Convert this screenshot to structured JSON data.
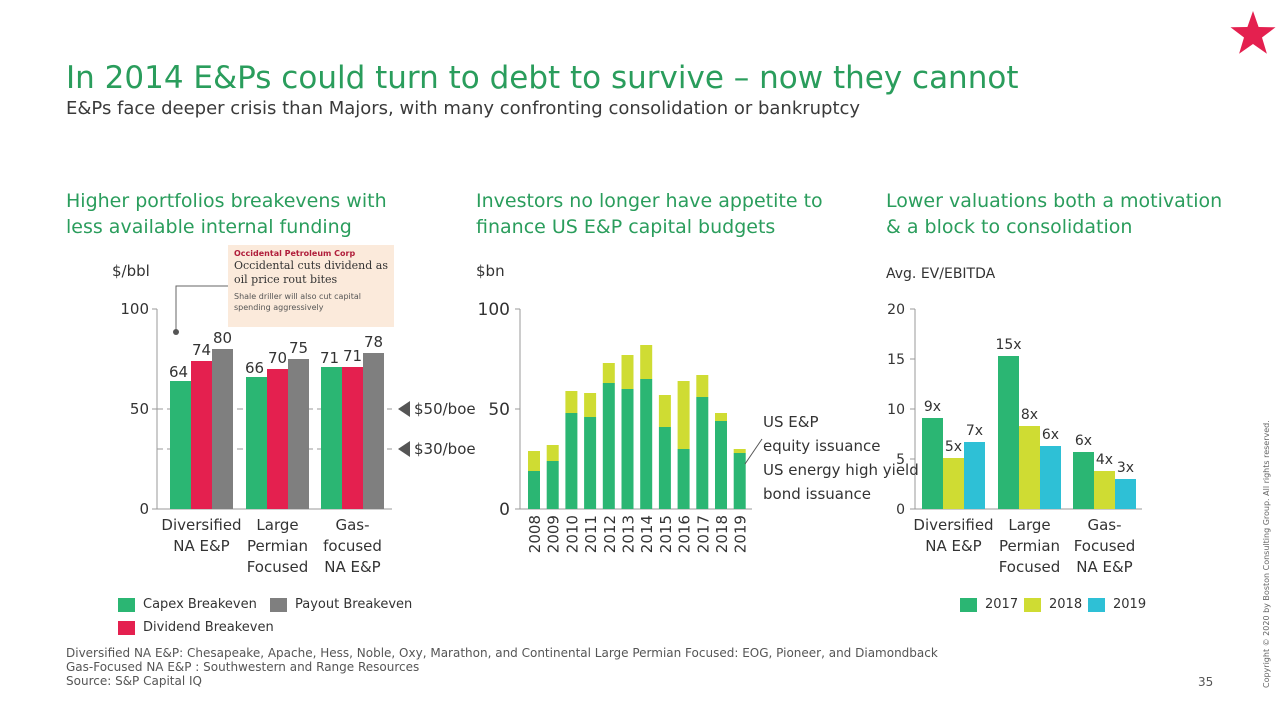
{
  "header": {
    "title": "In 2014 E&Ps could turn to debt to survive – now they cannot",
    "subtitle": "E&Ps face deeper crisis than Majors, with many confronting consolidation or bankruptcy",
    "logo_icon": "star-icon",
    "logo_color": "#e4204f"
  },
  "sections": {
    "left": {
      "title_line1": "Higher portfolios breakevens with",
      "title_line2": "less available internal funding",
      "unit": "$/bbl"
    },
    "middle": {
      "title_line1": "Investors no longer have appetite to",
      "title_line2": "finance US E&P capital budgets",
      "unit": "$bn"
    },
    "right": {
      "title_line1": "Lower valuations both a motivation",
      "title_line2": "& a block to consolidation",
      "unit": "Avg. EV/EBITDA"
    }
  },
  "news_card": {
    "company": "Occidental Petroleum Corp",
    "headline": "Occidental cuts dividend as oil price rout bites",
    "subline": "Shale driller will also cut capital spending aggressively"
  },
  "price_markers": {
    "first": "$50/boe",
    "second": "$30/boe"
  },
  "middle_annotations": {
    "equity_line1": "US E&P",
    "equity_line2": "equity issuance",
    "bond_line1": "US energy high yield",
    "bond_line2": "bond issuance"
  },
  "legends": {
    "left": {
      "capex": "Capex Breakeven",
      "payout": "Payout Breakeven",
      "dividend": "Dividend Breakeven"
    },
    "right": {
      "y2017": "2017",
      "y2018": "2018",
      "y2019": "2019"
    }
  },
  "footnotes": {
    "line1": "Diversified NA E&P: Chesapeake, Apache, Hess, Noble, Oxy, Marathon, and Continental Large Permian Focused: EOG, Pioneer, and Diamondback",
    "line2": "Gas-Focused NA E&P : Southwestern and Range Resources",
    "line3": "Source: S&P Capital IQ"
  },
  "copyright": "Copyright © 2020 by Boston Consulting Group. All rights reserved.",
  "page_number": "35",
  "colors": {
    "green": "#2bb673",
    "red": "#e4204f",
    "gray": "#7f7f7f",
    "yellow_green": "#cfdc33",
    "cyan": "#2ec0d6",
    "title_green": "#2a9d5c"
  },
  "chart_data": [
    {
      "type": "bar",
      "title": "Higher portfolios breakevens with less available internal funding",
      "ylabel": "$/bbl",
      "ylim": [
        0,
        100
      ],
      "yticks": [
        0,
        50,
        100
      ],
      "categories": [
        [
          "Diversified",
          "NA E&P"
        ],
        [
          "Large",
          "Permian",
          "Focused"
        ],
        [
          "Gas-",
          "focused",
          "NA E&P"
        ]
      ],
      "series": [
        {
          "name": "Capex Breakeven",
          "color": "#2bb673",
          "values": [
            64,
            66,
            71
          ]
        },
        {
          "name": "Dividend Breakeven",
          "color": "#e4204f",
          "values": [
            74,
            70,
            71
          ]
        },
        {
          "name": "Payout Breakeven",
          "color": "#7f7f7f",
          "values": [
            80,
            75,
            78
          ]
        }
      ],
      "reference_lines": [
        {
          "label": "$50/boe",
          "value": 50
        },
        {
          "label": "$30/boe",
          "value": 30
        }
      ]
    },
    {
      "type": "bar",
      "stacked": true,
      "title": "Investors no longer have appetite to finance US E&P capital budgets",
      "ylabel": "$bn",
      "ylim": [
        0,
        100
      ],
      "yticks": [
        0,
        50,
        100
      ],
      "categories": [
        "2008",
        "2009",
        "2010",
        "2011",
        "2012",
        "2013",
        "2014",
        "2015",
        "2016",
        "2017",
        "2018",
        "2019"
      ],
      "series": [
        {
          "name": "US energy high yield bond issuance",
          "color": "#2bb673",
          "values": [
            19,
            24,
            48,
            46,
            63,
            60,
            65,
            41,
            30,
            56,
            44,
            28
          ]
        },
        {
          "name": "US E&P equity issuance",
          "color": "#cfdc33",
          "values": [
            10,
            8,
            11,
            12,
            10,
            17,
            17,
            16,
            34,
            11,
            4,
            2
          ]
        }
      ]
    },
    {
      "type": "bar",
      "title": "Lower valuations both a motivation & a block to consolidation",
      "ylabel": "Avg. EV/EBITDA",
      "ylim": [
        0,
        20
      ],
      "yticks": [
        0,
        5,
        10,
        15,
        20
      ],
      "categories": [
        [
          "Diversified",
          "NA E&P"
        ],
        [
          "Large",
          "Permian",
          "Focused"
        ],
        [
          "Gas-",
          "Focused",
          "NA E&P"
        ]
      ],
      "series": [
        {
          "name": "2017",
          "color": "#2bb673",
          "values": [
            9.1,
            15.3,
            5.7
          ],
          "labels": [
            "9x",
            "15x",
            "6x"
          ]
        },
        {
          "name": "2018",
          "color": "#cfdc33",
          "values": [
            5.1,
            8.3,
            3.8
          ],
          "labels": [
            "5x",
            "8x",
            "4x"
          ]
        },
        {
          "name": "2019",
          "color": "#2ec0d6",
          "values": [
            6.7,
            6.3,
            3.0
          ],
          "labels": [
            "7x",
            "6x",
            "3x"
          ]
        }
      ]
    }
  ]
}
